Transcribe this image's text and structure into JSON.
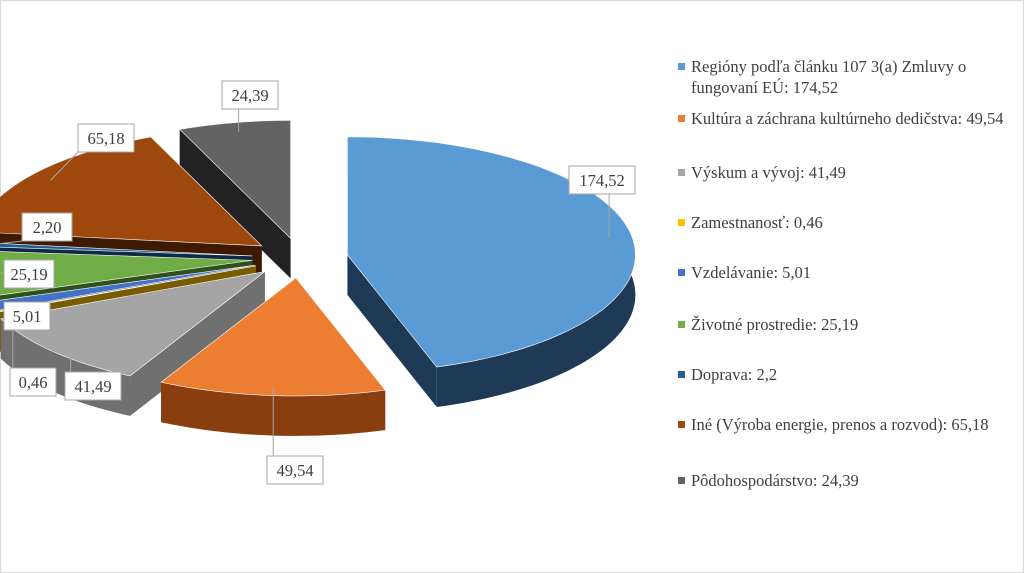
{
  "chart_data": {
    "type": "pie",
    "title": "",
    "style": "3d-exploded",
    "legend_position": "right",
    "slices": [
      {
        "label": "Regióny podľa článku 107 3(a) Zmluvy o fungovaní EÚ",
        "legend_text": "Regióny podľa článku 107 3(a) Zmluvy o fungovaní EÚ: 174,52",
        "value": 174.52,
        "data_label": "174,52",
        "color": "#5b9bd5",
        "side_color": "#1f3a57"
      },
      {
        "label": "Kultúra a záchrana kultúrneho dedičstva",
        "legend_text": "Kultúra a záchrana kultúrneho dedičstva: 49,54",
        "value": 49.54,
        "data_label": "49,54",
        "color": "#ed7d31",
        "side_color": "#8a3e0f"
      },
      {
        "label": "Výskum a vývoj",
        "legend_text": "Výskum a vývoj: 41,49",
        "value": 41.49,
        "data_label": "41,49",
        "color": "#a5a5a5",
        "side_color": "#707070"
      },
      {
        "label": "Zamestnanosť",
        "legend_text": "Zamestnanosť: 0,46",
        "value": 0.46,
        "data_label": "0,46",
        "color": "#ffc000",
        "side_color": "#7a5c00"
      },
      {
        "label": "Vzdelávanie",
        "legend_text": "Vzdelávanie: 5,01",
        "value": 5.01,
        "data_label": "5,01",
        "color": "#4472c4",
        "side_color": "#1c3161"
      },
      {
        "label": "Životné prostredie",
        "legend_text": "Životné prostredie: 25,19",
        "value": 25.19,
        "data_label": "25,19",
        "color": "#70ad47",
        "side_color": "#2f4f1c"
      },
      {
        "label": "Doprava",
        "legend_text": "Doprava: 2,2",
        "value": 2.2,
        "data_label": "2,20",
        "color": "#255e91",
        "side_color": "#0f2a45"
      },
      {
        "label": "Iné (Výroba energie, prenos a rozvod)",
        "legend_text": "Iné (Výroba energie, prenos a rozvod): 65,18",
        "value": 65.18,
        "data_label": "65,18",
        "color": "#9e480e",
        "side_color": "#3e1a03"
      },
      {
        "label": "Pôdohospodárstvo",
        "legend_text": "Pôdohospodárstvo: 24,39",
        "value": 24.39,
        "data_label": "24,39",
        "color": "#636363",
        "side_color": "#222222"
      }
    ]
  }
}
